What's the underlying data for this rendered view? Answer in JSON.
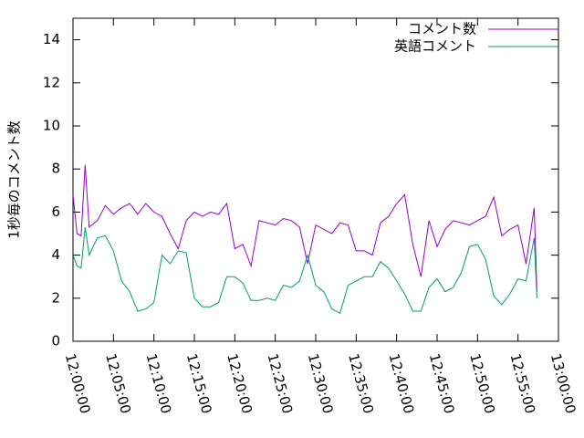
{
  "chart_data": {
    "type": "line",
    "ylabel": "1秒毎のコメント数",
    "x": [
      "12:00:00",
      "12:00:30",
      "12:01:00",
      "12:01:30",
      "12:02:00",
      "12:03:00",
      "12:04:00",
      "12:05:00",
      "12:06:00",
      "12:07:00",
      "12:08:00",
      "12:09:00",
      "12:10:00",
      "12:11:00",
      "12:12:00",
      "12:13:00",
      "12:14:00",
      "12:15:00",
      "12:16:00",
      "12:17:00",
      "12:18:00",
      "12:19:00",
      "12:20:00",
      "12:21:00",
      "12:22:00",
      "12:23:00",
      "12:24:00",
      "12:25:00",
      "12:26:00",
      "12:27:00",
      "12:28:00",
      "12:29:00",
      "12:30:00",
      "12:31:00",
      "12:32:00",
      "12:33:00",
      "12:34:00",
      "12:35:00",
      "12:36:00",
      "12:37:00",
      "12:38:00",
      "12:39:00",
      "12:40:00",
      "12:41:00",
      "12:42:00",
      "12:43:00",
      "12:44:00",
      "12:45:00",
      "12:46:00",
      "12:47:00",
      "12:48:00",
      "12:49:00",
      "12:50:00",
      "12:51:00",
      "12:52:00",
      "12:53:00",
      "12:54:00",
      "12:55:00",
      "12:56:00",
      "12:57:00",
      "12:57:20"
    ],
    "series": [
      {
        "name": "コメント数",
        "color": "#9400d3",
        "values": [
          6.8,
          5.0,
          4.9,
          8.2,
          5.3,
          5.6,
          6.3,
          5.9,
          6.2,
          6.4,
          5.9,
          6.4,
          6.0,
          5.8,
          5.0,
          4.3,
          5.6,
          6.0,
          5.8,
          6.0,
          5.9,
          6.4,
          4.3,
          4.5,
          3.5,
          5.6,
          5.5,
          5.4,
          5.7,
          5.6,
          5.3,
          3.6,
          5.4,
          5.2,
          5.0,
          5.5,
          5.4,
          4.2,
          4.2,
          4.0,
          5.5,
          5.8,
          6.4,
          6.8,
          4.5,
          3.0,
          5.6,
          4.4,
          5.2,
          5.6,
          5.5,
          5.4,
          5.6,
          5.8,
          6.7,
          4.9,
          5.2,
          5.4,
          3.6,
          6.2,
          2.3
        ]
      },
      {
        "name": "英語コメント",
        "color": "#009e73",
        "values": [
          4.0,
          3.5,
          3.4,
          5.3,
          4.0,
          4.8,
          4.9,
          4.2,
          2.8,
          2.3,
          1.4,
          1.5,
          1.8,
          4.0,
          3.6,
          4.2,
          4.1,
          2.0,
          1.6,
          1.6,
          1.8,
          3.0,
          3.0,
          2.7,
          1.9,
          1.9,
          2.0,
          1.9,
          2.6,
          2.5,
          2.8,
          4.0,
          2.6,
          2.3,
          1.5,
          1.3,
          2.6,
          2.8,
          3.0,
          3.0,
          3.7,
          3.4,
          2.8,
          2.2,
          1.4,
          1.4,
          2.5,
          2.9,
          2.3,
          2.5,
          3.2,
          4.4,
          4.5,
          3.8,
          2.1,
          1.7,
          2.2,
          2.9,
          2.8,
          4.8,
          2.0
        ]
      }
    ],
    "xlim": [
      "12:00:00",
      "13:00:00"
    ],
    "xticks": [
      "12:00:00",
      "12:05:00",
      "12:10:00",
      "12:15:00",
      "12:20:00",
      "12:25:00",
      "12:30:00",
      "12:35:00",
      "12:40:00",
      "12:45:00",
      "12:50:00",
      "12:55:00",
      "13:00:00"
    ],
    "ylim": [
      0,
      15
    ],
    "yticks": [
      0,
      2,
      4,
      6,
      8,
      10,
      12,
      14
    ],
    "legend": "top-right"
  }
}
